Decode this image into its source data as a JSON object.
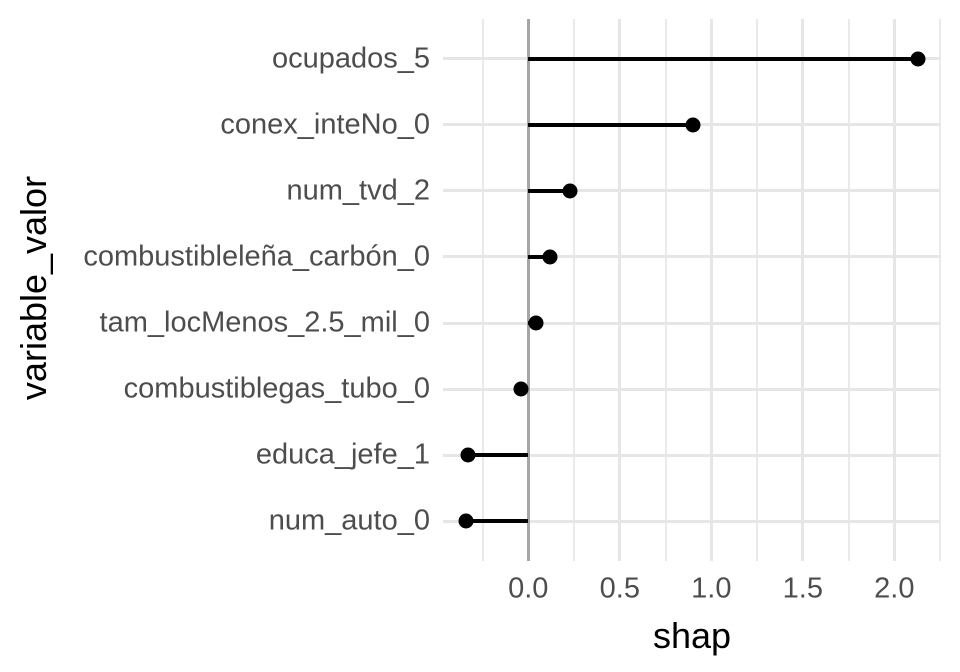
{
  "chart_data": {
    "type": "lollipop",
    "orientation": "horizontal",
    "title": "",
    "xlabel": "shap",
    "ylabel": "variable_valor",
    "categories": [
      "ocupados_5",
      "conex_inteNo_0",
      "num_tvd_2",
      "combustibleleña_carbón_0",
      "tam_locMenos_2.5_mil_0",
      "combustiblegas_tubo_0",
      "educa_jefe_1",
      "num_auto_0"
    ],
    "values": [
      2.13,
      0.9,
      0.23,
      0.12,
      0.04,
      -0.04,
      -0.33,
      -0.34
    ],
    "x_ticks": {
      "values": [
        0.0,
        0.5,
        1.0,
        1.5,
        2.0
      ],
      "labels": [
        "0.0",
        "0.5",
        "1.0",
        "1.5",
        "2.0"
      ]
    },
    "x_minor_ticks": [
      -0.25,
      0.25,
      0.75,
      1.25,
      1.75,
      2.25
    ],
    "xlim": [
      -0.466,
      2.255
    ],
    "zero_reference_line": 0,
    "grid": true,
    "legend": "none",
    "colors": {
      "point": "#000000",
      "segment": "#000000",
      "zero_line": "#a6a6a6",
      "grid_major": "#e6e6e6",
      "grid_minor": "#eaeaea",
      "axis_text": "#4d4d4d",
      "axis_title": "#000000",
      "background": "#ffffff"
    }
  }
}
